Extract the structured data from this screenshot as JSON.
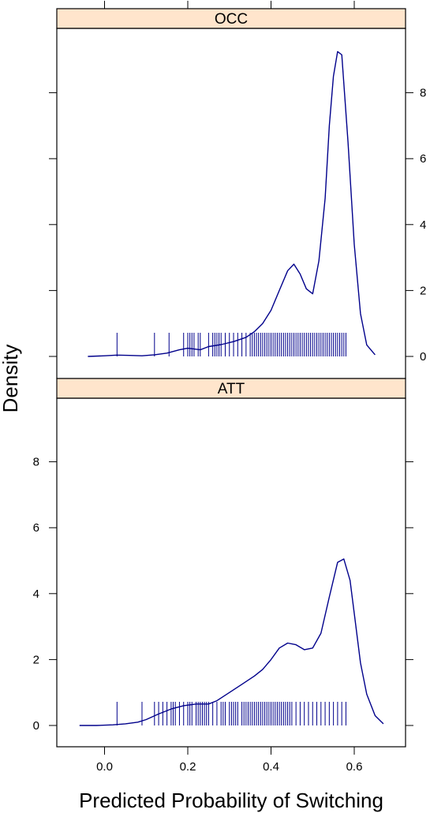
{
  "chart_data": {
    "type": "line",
    "subtype": "density with rug",
    "xlabel": "Predicted Probability of Switching",
    "ylabel": "Density",
    "xlim": [
      -0.11,
      0.73
    ],
    "ylim": [
      -0.4,
      9.8
    ],
    "x_ticks": [
      0.0,
      0.2,
      0.4,
      0.6
    ],
    "x_tick_labels": [
      "0.0",
      "0.2",
      "0.4",
      "0.6"
    ],
    "y_ticks": [
      0,
      2,
      4,
      6,
      8
    ],
    "y_tick_labels": [
      "0",
      "2",
      "4",
      "6",
      "8"
    ],
    "line_color": "#00008B",
    "strip_color": "#FFE5CC",
    "grid": false,
    "panels": [
      {
        "name": "OCC",
        "density": {
          "x": [
            -0.04,
            0.0,
            0.03,
            0.06,
            0.09,
            0.12,
            0.15,
            0.18,
            0.2,
            0.23,
            0.25,
            0.28,
            0.31,
            0.34,
            0.36,
            0.38,
            0.4,
            0.42,
            0.44,
            0.455,
            0.47,
            0.485,
            0.5,
            0.515,
            0.53,
            0.54,
            0.55,
            0.56,
            0.57,
            0.585,
            0.6,
            0.615,
            0.63,
            0.65
          ],
          "y": [
            0.0,
            0.02,
            0.04,
            0.03,
            0.02,
            0.05,
            0.1,
            0.2,
            0.25,
            0.2,
            0.3,
            0.36,
            0.45,
            0.58,
            0.75,
            1.0,
            1.4,
            2.0,
            2.6,
            2.8,
            2.5,
            2.05,
            1.9,
            2.9,
            4.8,
            7.0,
            8.5,
            9.25,
            9.15,
            6.5,
            3.4,
            1.3,
            0.35,
            0.05
          ]
        },
        "rug": [
          0.03,
          0.12,
          0.155,
          0.19,
          0.2,
          0.205,
          0.21,
          0.215,
          0.225,
          0.23,
          0.25,
          0.26,
          0.265,
          0.27,
          0.275,
          0.28,
          0.29,
          0.3,
          0.31,
          0.32,
          0.33,
          0.34,
          0.35,
          0.355,
          0.36,
          0.365,
          0.37,
          0.375,
          0.38,
          0.385,
          0.39,
          0.395,
          0.4,
          0.405,
          0.41,
          0.415,
          0.42,
          0.425,
          0.43,
          0.435,
          0.44,
          0.445,
          0.45,
          0.455,
          0.46,
          0.465,
          0.47,
          0.475,
          0.48,
          0.485,
          0.49,
          0.495,
          0.5,
          0.505,
          0.51,
          0.515,
          0.52,
          0.525,
          0.53,
          0.535,
          0.54,
          0.545,
          0.55,
          0.555,
          0.56,
          0.565,
          0.57,
          0.575,
          0.58
        ]
      },
      {
        "name": "ATT",
        "density": {
          "x": [
            -0.06,
            -0.02,
            0.02,
            0.05,
            0.08,
            0.1,
            0.13,
            0.16,
            0.19,
            0.22,
            0.25,
            0.27,
            0.3,
            0.33,
            0.36,
            0.38,
            0.4,
            0.42,
            0.44,
            0.46,
            0.48,
            0.5,
            0.52,
            0.54,
            0.56,
            0.575,
            0.59,
            0.6,
            0.615,
            0.63,
            0.65,
            0.67
          ],
          "y": [
            0.0,
            0.0,
            0.02,
            0.05,
            0.1,
            0.18,
            0.35,
            0.5,
            0.6,
            0.65,
            0.65,
            0.75,
            1.0,
            1.25,
            1.5,
            1.7,
            2.0,
            2.35,
            2.5,
            2.45,
            2.3,
            2.35,
            2.8,
            3.9,
            4.95,
            5.05,
            4.4,
            3.4,
            1.9,
            0.95,
            0.3,
            0.05
          ]
        },
        "rug": [
          0.03,
          0.09,
          0.12,
          0.13,
          0.14,
          0.15,
          0.16,
          0.165,
          0.17,
          0.18,
          0.19,
          0.2,
          0.205,
          0.21,
          0.22,
          0.225,
          0.23,
          0.235,
          0.24,
          0.245,
          0.25,
          0.26,
          0.27,
          0.28,
          0.285,
          0.29,
          0.3,
          0.305,
          0.31,
          0.315,
          0.32,
          0.33,
          0.335,
          0.34,
          0.345,
          0.35,
          0.355,
          0.36,
          0.365,
          0.37,
          0.375,
          0.38,
          0.385,
          0.39,
          0.395,
          0.4,
          0.405,
          0.41,
          0.415,
          0.42,
          0.425,
          0.43,
          0.435,
          0.44,
          0.445,
          0.45,
          0.46,
          0.47,
          0.48,
          0.49,
          0.5,
          0.51,
          0.52,
          0.53,
          0.54,
          0.55,
          0.56,
          0.57,
          0.58
        ]
      }
    ]
  }
}
